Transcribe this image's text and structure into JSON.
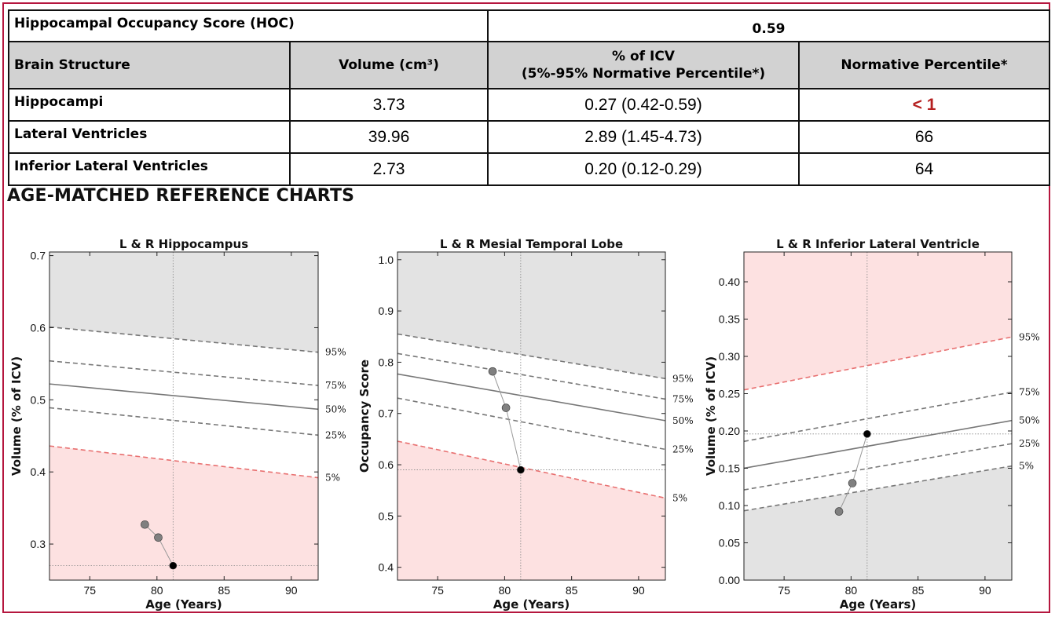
{
  "summary": {
    "hoc_label": "Hippocampal Occupancy Score (HOC)",
    "hoc_value": "0.59"
  },
  "table": {
    "headers": [
      "Brain Structure",
      "Volume (cm³)",
      "% of ICV",
      "(5%-95% Normative Percentile*)",
      "Normative Percentile*"
    ],
    "rows": [
      {
        "structure": "Hippocampi",
        "volume": "3.73",
        "icv": "0.27 (0.42-0.59)",
        "percentile": "< 1"
      },
      {
        "structure": "Lateral Ventricles",
        "volume": "39.96",
        "icv": "2.89 (1.45-4.73)",
        "percentile": "66"
      },
      {
        "structure": "Inferior Lateral Ventricles",
        "volume": "2.73",
        "icv": "0.20 (0.12-0.29)",
        "percentile": "64"
      }
    ],
    "alert_color": "#b52020"
  },
  "section_title": "AGE-MATCHED REFERENCE CHARTS",
  "colors": {
    "frame": "#b5163e",
    "gray_zone": "#e3e3e3",
    "red_zone": "#fde1e1",
    "red_line": "#e87070"
  },
  "chart_data": [
    {
      "type": "line",
      "title": "L & R Hippocampus",
      "xlabel": "Age (Years)",
      "ylabel": "Volume (% of ICV)",
      "xlim": [
        72,
        92
      ],
      "ylim": [
        0.25,
        0.705
      ],
      "xticks": [
        75,
        80,
        85,
        90
      ],
      "yticks": [
        0.3,
        0.4,
        0.5,
        0.6,
        0.7
      ],
      "ytick_labels": [
        "0.3",
        "0.4",
        "0.5",
        "0.6",
        "0.7"
      ],
      "bad_zone": "below",
      "percentiles": [
        {
          "name": "95%",
          "start": 0.601,
          "end": 0.566
        },
        {
          "name": "75%",
          "start": 0.554,
          "end": 0.52
        },
        {
          "name": "50%",
          "start": 0.522,
          "end": 0.487
        },
        {
          "name": "25%",
          "start": 0.489,
          "end": 0.451
        },
        {
          "name": "5%",
          "start": 0.436,
          "end": 0.392
        }
      ],
      "patient": {
        "x": [
          79.1,
          80.1,
          81.2
        ],
        "y": [
          0.327,
          0.309,
          0.27
        ]
      },
      "current": {
        "x": 81.2,
        "y": 0.27
      }
    },
    {
      "type": "line",
      "title": "L & R Mesial Temporal Lobe",
      "xlabel": "Age (Years)",
      "ylabel": "Occupancy Score",
      "xlim": [
        72,
        92
      ],
      "ylim": [
        0.375,
        1.015
      ],
      "xticks": [
        75,
        80,
        85,
        90
      ],
      "yticks": [
        0.4,
        0.5,
        0.6,
        0.7,
        0.8,
        0.9,
        1.0
      ],
      "ytick_labels": [
        "0.4",
        "0.5",
        "0.6",
        "0.7",
        "0.8",
        "0.9",
        "1.0"
      ],
      "bad_zone": "below",
      "percentiles": [
        {
          "name": "95%",
          "start": 0.855,
          "end": 0.768
        },
        {
          "name": "75%",
          "start": 0.817,
          "end": 0.728
        },
        {
          "name": "50%",
          "start": 0.777,
          "end": 0.686
        },
        {
          "name": "25%",
          "start": 0.73,
          "end": 0.63
        },
        {
          "name": "5%",
          "start": 0.646,
          "end": 0.535
        }
      ],
      "patient": {
        "x": [
          79.1,
          80.1,
          81.2
        ],
        "y": [
          0.782,
          0.711,
          0.59
        ]
      },
      "current": {
        "x": 81.2,
        "y": 0.59
      }
    },
    {
      "type": "line",
      "title": "L & R Inferior Lateral Ventricle",
      "xlabel": "Age (Years)",
      "ylabel": "Volume (% of ICV)",
      "xlim": [
        72,
        92
      ],
      "ylim": [
        0.0,
        0.44
      ],
      "xticks": [
        75,
        80,
        85,
        90
      ],
      "yticks": [
        0.0,
        0.05,
        0.1,
        0.15,
        0.2,
        0.25,
        0.3,
        0.35,
        0.4
      ],
      "ytick_labels": [
        "0.00",
        "0.05",
        "0.10",
        "0.15",
        "0.20",
        "0.25",
        "0.30",
        "0.35",
        "0.40"
      ],
      "bad_zone": "above",
      "percentiles": [
        {
          "name": "95%",
          "start": 0.255,
          "end": 0.326
        },
        {
          "name": "75%",
          "start": 0.186,
          "end": 0.252
        },
        {
          "name": "50%",
          "start": 0.15,
          "end": 0.214
        },
        {
          "name": "25%",
          "start": 0.121,
          "end": 0.183
        },
        {
          "name": "5%",
          "start": 0.093,
          "end": 0.153
        }
      ],
      "patient": {
        "x": [
          79.1,
          80.1,
          81.2
        ],
        "y": [
          0.092,
          0.13,
          0.196
        ]
      },
      "current": {
        "x": 81.2,
        "y": 0.196
      }
    }
  ]
}
